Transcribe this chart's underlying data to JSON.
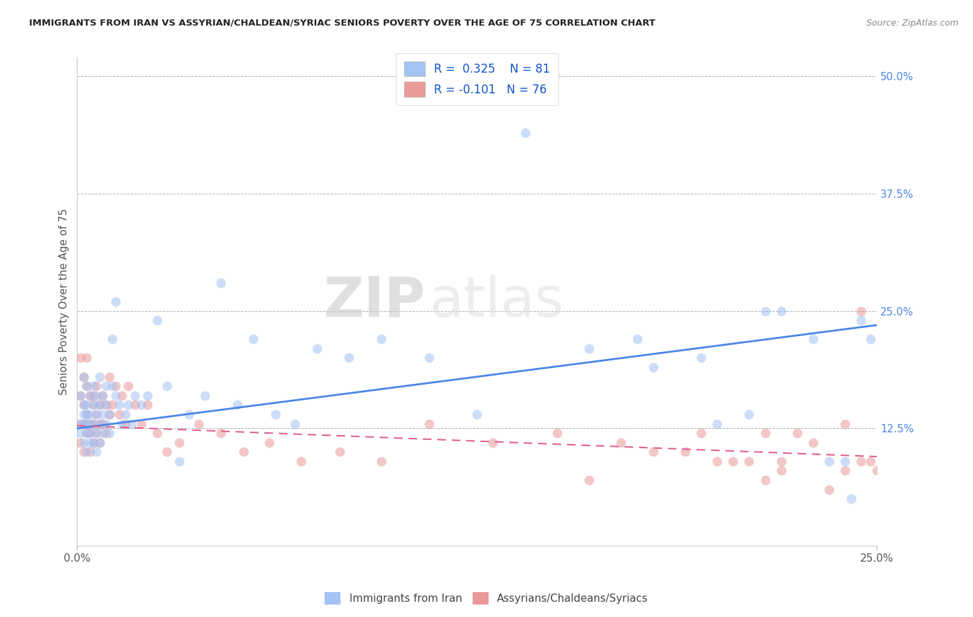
{
  "title": "IMMIGRANTS FROM IRAN VS ASSYRIAN/CHALDEAN/SYRIAC SENIORS POVERTY OVER THE AGE OF 75 CORRELATION CHART",
  "source": "Source: ZipAtlas.com",
  "ylabel": "Seniors Poverty Over the Age of 75",
  "blue_R": 0.325,
  "blue_N": 81,
  "pink_R": -0.101,
  "pink_N": 76,
  "blue_label": "Immigrants from Iran",
  "pink_label": "Assyrians/Chaldeans/Syriacs",
  "blue_color": "#a4c2f4",
  "pink_color": "#ea9999",
  "blue_line_color": "#4a86e8",
  "pink_line_color": "#e06090",
  "background_color": "#ffffff",
  "grid_color": "#b0b0b0",
  "title_color": "#222222",
  "axis_label_color": "#555555",
  "right_tick_color": "#4a86e8",
  "legend_text_color": "#1155cc",
  "blue_scatter_x": [
    0.001,
    0.001,
    0.001,
    0.002,
    0.002,
    0.002,
    0.002,
    0.002,
    0.003,
    0.003,
    0.003,
    0.003,
    0.003,
    0.003,
    0.004,
    0.004,
    0.004,
    0.004,
    0.004,
    0.005,
    0.005,
    0.005,
    0.005,
    0.006,
    0.006,
    0.006,
    0.006,
    0.007,
    0.007,
    0.007,
    0.007,
    0.008,
    0.008,
    0.008,
    0.009,
    0.009,
    0.009,
    0.01,
    0.01,
    0.011,
    0.011,
    0.012,
    0.012,
    0.013,
    0.014,
    0.015,
    0.016,
    0.017,
    0.018,
    0.02,
    0.022,
    0.025,
    0.028,
    0.032,
    0.035,
    0.04,
    0.045,
    0.05,
    0.055,
    0.062,
    0.068,
    0.075,
    0.085,
    0.095,
    0.11,
    0.125,
    0.14,
    0.16,
    0.175,
    0.195,
    0.21,
    0.22,
    0.235,
    0.242,
    0.248,
    0.18,
    0.2,
    0.215,
    0.23,
    0.24,
    0.245
  ],
  "blue_scatter_y": [
    0.13,
    0.16,
    0.12,
    0.15,
    0.18,
    0.13,
    0.11,
    0.14,
    0.17,
    0.13,
    0.1,
    0.15,
    0.12,
    0.14,
    0.16,
    0.13,
    0.11,
    0.14,
    0.12,
    0.17,
    0.13,
    0.15,
    0.11,
    0.16,
    0.14,
    0.12,
    0.1,
    0.18,
    0.15,
    0.13,
    0.11,
    0.16,
    0.14,
    0.12,
    0.17,
    0.13,
    0.15,
    0.14,
    0.12,
    0.17,
    0.22,
    0.16,
    0.26,
    0.15,
    0.13,
    0.14,
    0.15,
    0.13,
    0.16,
    0.15,
    0.16,
    0.24,
    0.17,
    0.09,
    0.14,
    0.16,
    0.28,
    0.15,
    0.22,
    0.14,
    0.13,
    0.21,
    0.2,
    0.22,
    0.2,
    0.14,
    0.44,
    0.21,
    0.22,
    0.2,
    0.14,
    0.25,
    0.09,
    0.05,
    0.22,
    0.19,
    0.13,
    0.25,
    0.22,
    0.09,
    0.24
  ],
  "pink_scatter_x": [
    0.001,
    0.001,
    0.001,
    0.001,
    0.002,
    0.002,
    0.002,
    0.002,
    0.003,
    0.003,
    0.003,
    0.003,
    0.003,
    0.004,
    0.004,
    0.004,
    0.004,
    0.005,
    0.005,
    0.005,
    0.005,
    0.006,
    0.006,
    0.006,
    0.007,
    0.007,
    0.007,
    0.008,
    0.008,
    0.009,
    0.009,
    0.01,
    0.01,
    0.011,
    0.012,
    0.013,
    0.014,
    0.015,
    0.016,
    0.018,
    0.02,
    0.022,
    0.025,
    0.028,
    0.032,
    0.038,
    0.045,
    0.052,
    0.06,
    0.07,
    0.082,
    0.095,
    0.11,
    0.13,
    0.15,
    0.17,
    0.16,
    0.19,
    0.21,
    0.225,
    0.23,
    0.24,
    0.245,
    0.248,
    0.25,
    0.2,
    0.215,
    0.22,
    0.235,
    0.24,
    0.18,
    0.195,
    0.205,
    0.215,
    0.22,
    0.245
  ],
  "pink_scatter_y": [
    0.2,
    0.16,
    0.13,
    0.11,
    0.18,
    0.15,
    0.13,
    0.1,
    0.17,
    0.14,
    0.12,
    0.2,
    0.13,
    0.16,
    0.13,
    0.12,
    0.1,
    0.15,
    0.13,
    0.11,
    0.16,
    0.17,
    0.14,
    0.12,
    0.15,
    0.13,
    0.11,
    0.16,
    0.13,
    0.15,
    0.12,
    0.18,
    0.14,
    0.15,
    0.17,
    0.14,
    0.16,
    0.13,
    0.17,
    0.15,
    0.13,
    0.15,
    0.12,
    0.1,
    0.11,
    0.13,
    0.12,
    0.1,
    0.11,
    0.09,
    0.1,
    0.09,
    0.13,
    0.11,
    0.12,
    0.11,
    0.07,
    0.1,
    0.09,
    0.12,
    0.11,
    0.13,
    0.25,
    0.09,
    0.08,
    0.09,
    0.12,
    0.09,
    0.06,
    0.08,
    0.1,
    0.12,
    0.09,
    0.07,
    0.08,
    0.09
  ],
  "xlim": [
    0.0,
    0.25
  ],
  "ylim": [
    0.0,
    0.52
  ],
  "xtick_positions": [
    0.0,
    0.25
  ],
  "xtick_labels": [
    "0.0%",
    "25.0%"
  ],
  "ytick_positions": [
    0.0,
    0.125,
    0.25,
    0.375,
    0.5
  ],
  "ytick_labels": [
    "",
    "12.5%",
    "25.0%",
    "37.5%",
    "50.0%"
  ],
  "blue_trendline_x": [
    0.0,
    0.25
  ],
  "blue_trendline_y": [
    0.125,
    0.235
  ],
  "pink_trendline_x": [
    0.0,
    0.25
  ],
  "pink_trendline_y": [
    0.128,
    0.095
  ],
  "marker_size": 100,
  "marker_alpha": 0.55,
  "figsize": [
    14.06,
    8.92
  ],
  "dpi": 100
}
